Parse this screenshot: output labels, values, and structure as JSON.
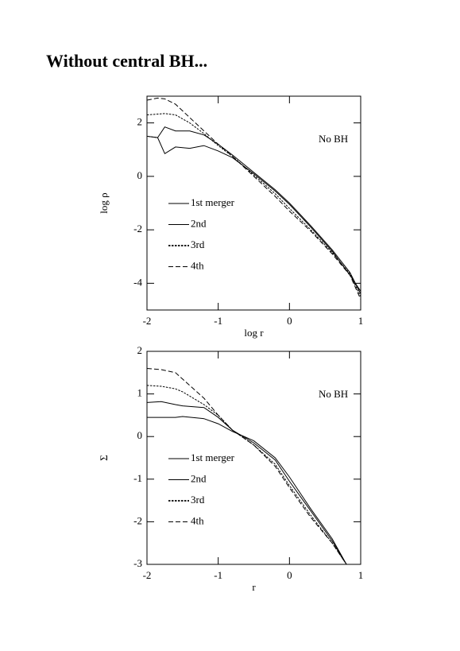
{
  "heading": "Without central BH...",
  "chart_data": [
    {
      "type": "line",
      "xlabel": "log r",
      "ylabel": "log ρ",
      "annotation": "No BH",
      "xlim": [
        -2,
        1
      ],
      "ylim": [
        -5,
        3
      ],
      "xticks": [
        -2,
        -1,
        0,
        1
      ],
      "yticks": [
        -4,
        -2,
        0,
        2
      ],
      "legend_loc": "center left",
      "x": [
        -2,
        -1.85,
        -1.75,
        -1.6,
        -1.4,
        -1.2,
        -1,
        -0.8,
        -0.5,
        -0.2,
        0,
        0.3,
        0.6,
        0.85,
        1
      ],
      "series": [
        {
          "name": "1st merger",
          "color": "#000000",
          "linestyle": "solid",
          "values": [
            1.5,
            1.45,
            0.85,
            1.1,
            1.05,
            1.15,
            0.95,
            0.7,
            0.1,
            -0.55,
            -1.05,
            -1.9,
            -2.8,
            -3.7,
            -4.3
          ]
        },
        {
          "name": "2nd",
          "color": "#000000",
          "linestyle": "solid",
          "values": [
            1.5,
            1.45,
            1.85,
            1.7,
            1.7,
            1.55,
            1.2,
            0.8,
            0.15,
            -0.5,
            -1.0,
            -1.85,
            -2.75,
            -3.6,
            -4.4
          ]
        },
        {
          "name": "3rd",
          "color": "#000000",
          "linestyle": "dotted",
          "values": [
            2.3,
            2.33,
            2.35,
            2.3,
            2.0,
            1.6,
            1.15,
            0.75,
            0.05,
            -0.65,
            -1.2,
            -2.0,
            -2.85,
            -3.65,
            -4.5
          ]
        },
        {
          "name": "4th",
          "color": "#000000",
          "linestyle": "dashed",
          "values": [
            2.85,
            2.93,
            2.9,
            2.7,
            2.2,
            1.7,
            1.2,
            0.75,
            0.0,
            -0.75,
            -1.3,
            -2.05,
            -2.9,
            -3.7,
            -4.6
          ]
        }
      ]
    },
    {
      "type": "line",
      "xlabel": "r",
      "ylabel": "Σ",
      "annotation": "No BH",
      "xlim": [
        -2,
        1
      ],
      "ylim": [
        -3,
        2
      ],
      "xticks": [
        -2,
        -1,
        0,
        1
      ],
      "yticks": [
        -3,
        -2,
        -1,
        0,
        1,
        2
      ],
      "legend_loc": "center left",
      "x": [
        -2,
        -1.8,
        -1.6,
        -1.5,
        -1.2,
        -1,
        -0.8,
        -0.5,
        -0.2,
        0,
        0.3,
        0.6,
        0.8
      ],
      "series": [
        {
          "name": "1st merger",
          "color": "#000000",
          "linestyle": "solid",
          "values": [
            0.45,
            0.45,
            0.45,
            0.47,
            0.42,
            0.3,
            0.12,
            -0.1,
            -0.5,
            -0.95,
            -1.7,
            -2.4,
            -3.0
          ]
        },
        {
          "name": "2nd",
          "color": "#000000",
          "linestyle": "solid",
          "values": [
            0.8,
            0.82,
            0.75,
            0.72,
            0.68,
            0.45,
            0.15,
            -0.15,
            -0.55,
            -1.05,
            -1.75,
            -2.45,
            -3.0
          ]
        },
        {
          "name": "3rd",
          "color": "#000000",
          "linestyle": "dotted",
          "values": [
            1.2,
            1.18,
            1.12,
            1.05,
            0.75,
            0.5,
            0.15,
            -0.2,
            -0.65,
            -1.15,
            -1.85,
            -2.5,
            -3.0
          ]
        },
        {
          "name": "4th",
          "color": "#000000",
          "linestyle": "dashed",
          "values": [
            1.6,
            1.57,
            1.5,
            1.35,
            0.9,
            0.5,
            0.15,
            -0.2,
            -0.7,
            -1.2,
            -1.9,
            -2.5,
            -3.0
          ]
        }
      ]
    }
  ]
}
